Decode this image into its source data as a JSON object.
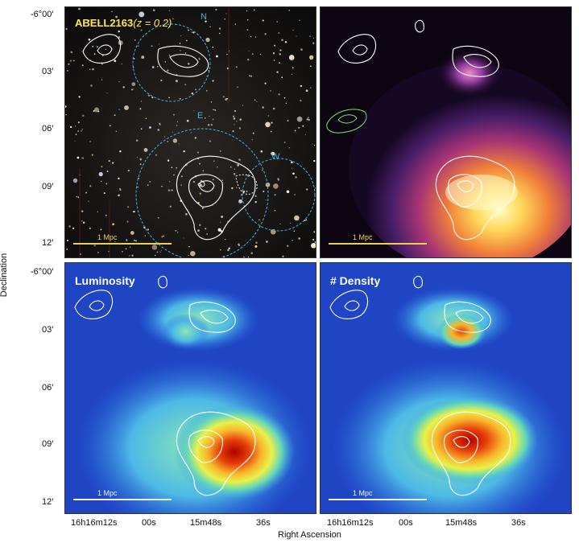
{
  "panels": {
    "top_left": {
      "cluster_name": "ABELL2163",
      "redshift": "(z = 0.2)",
      "labels": {
        "north": "N",
        "east": "E",
        "west": "W"
      },
      "scale_label": "1 Mpc",
      "scale_color": "#e6d24b"
    },
    "top_right": {
      "scale_label": "1 Mpc"
    },
    "bottom_left": {
      "title": "Luminosity",
      "scale_label": "1 Mpc"
    },
    "bottom_right": {
      "title": "# Density",
      "scale_label": "1 Mpc"
    }
  },
  "axes": {
    "y_label": "Declination",
    "x_label": "Right Ascension",
    "y_ticks_top": [
      "-6°00′",
      "03′",
      "06′",
      "09′",
      "12′"
    ],
    "y_ticks_bottom": [
      "-6°00′",
      "03′",
      "06′",
      "09′",
      "12′"
    ],
    "x_ticks_left": [
      "16h16m12s",
      "00s",
      "15m48s",
      "36s"
    ],
    "x_ticks_right": [
      "16h16m12s",
      "00s",
      "15m48s",
      "36s"
    ]
  },
  "colors": {
    "contour": "#ffffff",
    "region_circle": "#3fb2e2",
    "green_contour": "#7be36b"
  }
}
